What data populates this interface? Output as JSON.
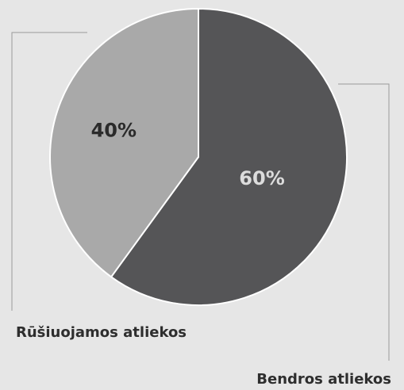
{
  "chart_data": {
    "type": "pie",
    "slices": [
      {
        "label": "Bendros atliekos",
        "value": 60,
        "value_label": "60%",
        "color": "#555557",
        "label_color": "#dcdcdc"
      },
      {
        "label": "Rūšiuojamos atliekos",
        "value": 40,
        "value_label": "40%",
        "color": "#a9a9a9",
        "label_color": "#2b2b2b"
      }
    ],
    "slice_border_color": "#ffffff",
    "leader_line_color": "#9a9a9a",
    "background_color": "#e6e6e6"
  }
}
